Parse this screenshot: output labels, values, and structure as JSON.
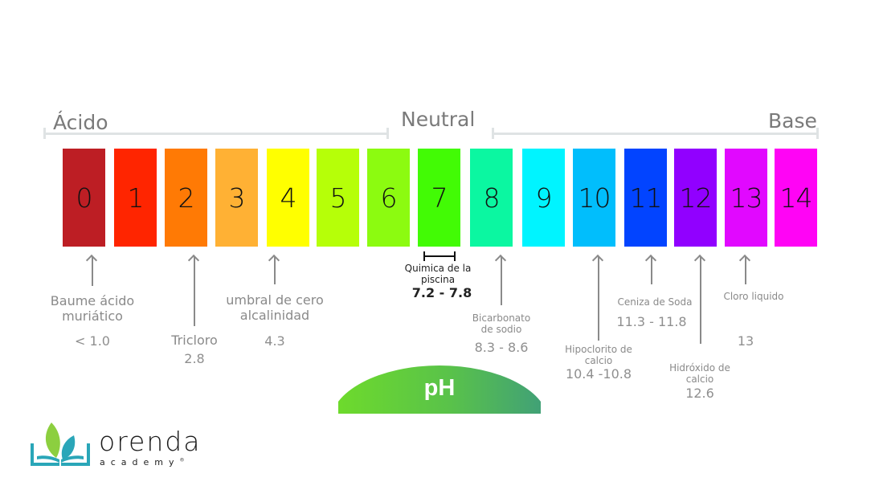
{
  "scale": {
    "labels": {
      "acid": "Ácido",
      "neutral": "Neutral",
      "base": "Base"
    },
    "swatches": [
      {
        "value": "0",
        "color": "#bd1e24"
      },
      {
        "value": "1",
        "color": "#ff2500"
      },
      {
        "value": "2",
        "color": "#ff7a05"
      },
      {
        "value": "3",
        "color": "#ffb134"
      },
      {
        "value": "4",
        "color": "#ffff00"
      },
      {
        "value": "5",
        "color": "#b6ff08"
      },
      {
        "value": "6",
        "color": "#8cfb10"
      },
      {
        "value": "7",
        "color": "#42fb05"
      },
      {
        "value": "8",
        "color": "#0bf7a1"
      },
      {
        "value": "9",
        "color": "#00f4ff"
      },
      {
        "value": "10",
        "color": "#01befc"
      },
      {
        "value": "11",
        "color": "#0244ff"
      },
      {
        "value": "12",
        "color": "#9100ff"
      },
      {
        "value": "13",
        "color": "#e108ff"
      },
      {
        "value": "14",
        "color": "#ff04f5"
      }
    ]
  },
  "annotations": {
    "muriatic": {
      "label_line1": "Baume ácido",
      "label_line2": "muriático",
      "value": "< 1.0"
    },
    "trichlor": {
      "label": "Tricloro",
      "value": "2.8"
    },
    "zero_alk": {
      "label_line1": "umbral de cero",
      "label_line2": "alcalinidad",
      "value": "4.3"
    },
    "pool": {
      "label_line1": "Quimica de la",
      "label_line2": "piscina",
      "value": "7.2 - 7.8"
    },
    "bicarb": {
      "label_line1": "Bicarbonato",
      "label_line2": "de sodio",
      "value": "8.3 - 8.6"
    },
    "cal_hypo": {
      "label_line1": "Hipoclorito de",
      "label_line2": "calcio",
      "value": "10.4 -10.8"
    },
    "soda_ash": {
      "label": "Ceniza de Soda",
      "value": "11.3 - 11.8"
    },
    "cal_hydroxide": {
      "label_line1": "Hidróxido de",
      "label_line2": "calcio",
      "value": "12.6"
    },
    "liquid_chlorine": {
      "label": "Cloro liquido",
      "value": "13"
    }
  },
  "badge": {
    "text": "pH"
  },
  "logo": {
    "name": "orenda",
    "sub": "academy",
    "mark": "®"
  }
}
